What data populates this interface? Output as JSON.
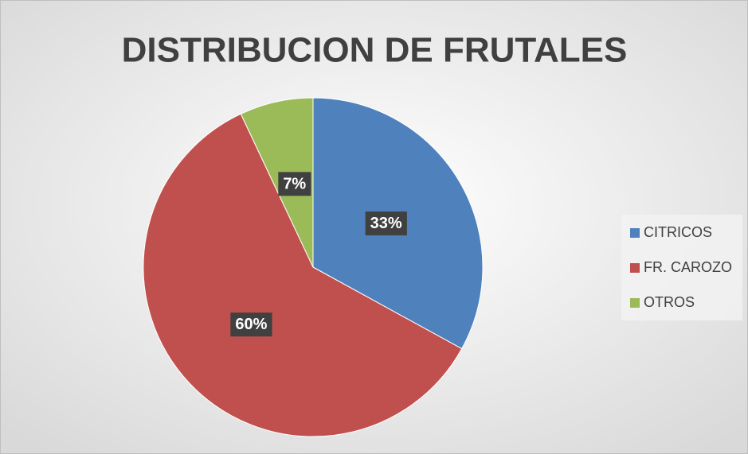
{
  "chart_data": {
    "type": "pie",
    "title": "DISTRIBUCION DE FRUTALES",
    "categories": [
      "CITRICOS",
      "FR. CAROZO",
      "OTROS"
    ],
    "values": [
      33,
      60,
      7
    ],
    "value_labels": [
      "33%",
      "60%",
      "7%"
    ],
    "colors": [
      "#4f81bd",
      "#c0504d",
      "#9bbb59"
    ],
    "legend": "right"
  }
}
